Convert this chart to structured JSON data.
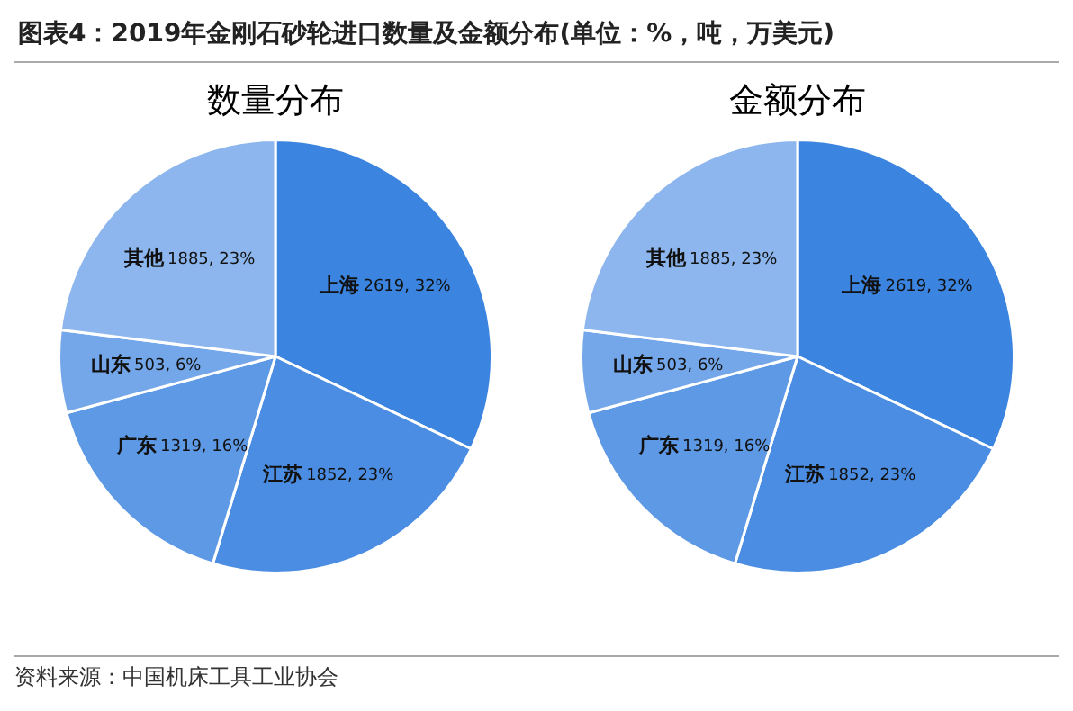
{
  "chart_data": [
    {
      "type": "pie",
      "title": "数量分布",
      "annotations": [
        "图表4：2019年金刚石砂轮进口数量及金额分布(单位：%，吨，万美元)"
      ],
      "categories": [
        "上海",
        "江苏",
        "广东",
        "山东",
        "其他"
      ],
      "values": [
        2619,
        1852,
        1319,
        503,
        1885
      ],
      "value_labels": [
        "2619, 32%",
        "1852, 23%",
        "1319, 16%",
        "503, 6%",
        "1885, 23%"
      ],
      "colors": [
        "#3b84e0",
        "#4b8de2",
        "#5e99e5",
        "#74a7e9",
        "#8cb6ed"
      ],
      "legend": false
    },
    {
      "type": "pie",
      "title": "金额分布",
      "annotations": [
        "资料来源：中国机床工具工业协会"
      ],
      "categories": [
        "上海",
        "江苏",
        "广东",
        "山东",
        "其他"
      ],
      "values": [
        2619,
        1852,
        1319,
        503,
        1885
      ],
      "value_labels": [
        "2619, 32%",
        "1852, 23%",
        "1319, 16%",
        "503, 6%",
        "1885, 23%"
      ],
      "colors": [
        "#3b84e0",
        "#4b8de2",
        "#5e99e5",
        "#74a7e9",
        "#8cb6ed"
      ],
      "legend": false
    }
  ]
}
